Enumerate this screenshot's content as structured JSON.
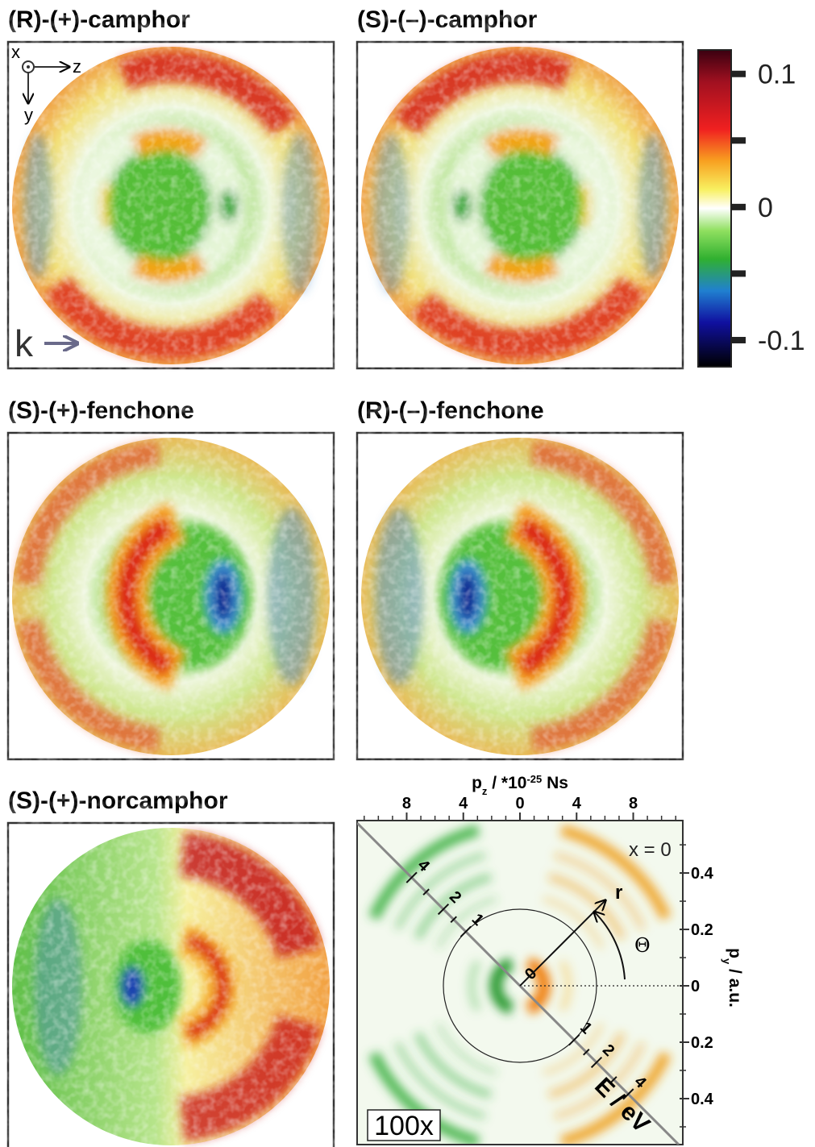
{
  "panels": [
    {
      "title": "(R)-(+)-camphor"
    },
    {
      "title": "(S)-(–)-camphor"
    },
    {
      "title": "(S)-(+)-fenchone"
    },
    {
      "title": "(R)-(–)-fenchone"
    },
    {
      "title": "(S)-(+)-norcamphor"
    }
  ],
  "frame_labels": {
    "x": "x",
    "y": "y",
    "z": "z",
    "k": "k"
  },
  "colorbar": {
    "lim": [
      -0.12,
      0.118
    ],
    "ticks": [
      0.1,
      0,
      -0.1
    ],
    "minor_ticks": [
      0.05,
      -0.05
    ]
  },
  "simulation": {
    "x_label": {
      "symbol": "p",
      "sub": "z",
      "text": " / *10",
      "sup": "-25",
      "unit": " Ns"
    },
    "xlim": [
      -11.5,
      11.5
    ],
    "xticks": [
      {
        "value": -8,
        "label": "8"
      },
      {
        "value": -4,
        "label": "4"
      },
      0,
      4,
      8
    ],
    "x_minor_ticks": [
      -11,
      -10,
      -9,
      -7,
      -6,
      -5,
      -3,
      -2,
      -1,
      1,
      2,
      3,
      5,
      6,
      7,
      9,
      10,
      11
    ],
    "y_label": {
      "symbol": "p",
      "sub": "y",
      "unit": " / a.u."
    },
    "ylim": [
      -0.563,
      0.586
    ],
    "yticks": [
      0.4,
      0.2,
      0,
      {
        "value": -0.2,
        "label": "0.2"
      },
      {
        "value": -0.4,
        "label": "0.4"
      }
    ],
    "y_minor_ticks": [
      0.5,
      0.3,
      0.1,
      -0.1,
      -0.3,
      -0.5
    ],
    "annotation": "x = 0",
    "magnification": "100x",
    "radius_label": "r",
    "angle_label": "Θ",
    "energy_axis": {
      "label": "E / eV",
      "ticks": [
        0,
        1,
        2,
        4
      ],
      "minor_ticks": [
        1.5,
        3
      ]
    }
  }
}
